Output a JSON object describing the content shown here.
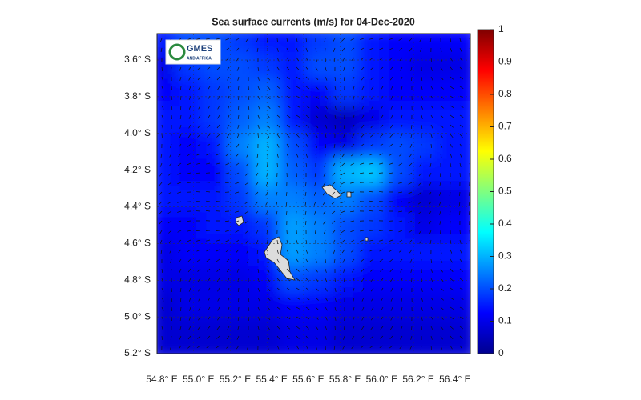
{
  "chart_data": {
    "type": "heatmap",
    "title": "Sea surface currents (m/s) for 04-Dec-2020",
    "logo_title": "GMES",
    "logo_subtitle": "AND AFRICA",
    "xlim": [
      54.8,
      56.51
    ],
    "ylim": [
      -5.2,
      -3.456
    ],
    "xticks": [
      {
        "value": 54.8,
        "label": "54.8° E"
      },
      {
        "value": 55.0,
        "label": "55.0° E"
      },
      {
        "value": 55.2,
        "label": "55.2° E"
      },
      {
        "value": 55.4,
        "label": "55.4° E"
      },
      {
        "value": 55.6,
        "label": "55.6° E"
      },
      {
        "value": 55.8,
        "label": "55.8° E"
      },
      {
        "value": 56.0,
        "label": "56.0° E"
      },
      {
        "value": 56.2,
        "label": "56.2° E"
      },
      {
        "value": 56.4,
        "label": "56.4° E"
      }
    ],
    "yticks": [
      {
        "value": -3.6,
        "label": "3.6° S"
      },
      {
        "value": -3.8,
        "label": "3.8° S"
      },
      {
        "value": -4.0,
        "label": "4.0° S"
      },
      {
        "value": -4.2,
        "label": "4.2° S"
      },
      {
        "value": -4.4,
        "label": "4.4° S"
      },
      {
        "value": -4.6,
        "label": "4.6° S"
      },
      {
        "value": -4.8,
        "label": "4.8° S"
      },
      {
        "value": -5.0,
        "label": "5.0° S"
      },
      {
        "value": -5.2,
        "label": "5.2° S"
      }
    ],
    "colorbar_lim": [
      0,
      1
    ],
    "colorbar_ticks": [
      0,
      0.1,
      0.2,
      0.3,
      0.4,
      0.5,
      0.6,
      0.7,
      0.8,
      0.9,
      1
    ],
    "colormap": "jet",
    "grid": true,
    "values": [
      [
        0.15,
        0.2,
        0.2,
        0.18,
        0.15,
        0.15,
        0.18,
        0.2,
        0.15,
        0.12,
        0.12,
        0.12
      ],
      [
        0.1,
        0.18,
        0.2,
        0.2,
        0.18,
        0.15,
        0.2,
        0.2,
        0.15,
        0.12,
        0.1,
        0.1
      ],
      [
        0.12,
        0.15,
        0.18,
        0.2,
        0.22,
        0.15,
        0.12,
        0.18,
        0.15,
        0.12,
        0.12,
        0.12
      ],
      [
        0.15,
        0.15,
        0.18,
        0.22,
        0.25,
        0.15,
        0.08,
        0.06,
        0.1,
        0.15,
        0.15,
        0.15
      ],
      [
        0.15,
        0.12,
        0.15,
        0.25,
        0.3,
        0.2,
        0.12,
        0.1,
        0.18,
        0.2,
        0.18,
        0.15
      ],
      [
        0.15,
        0.12,
        0.12,
        0.2,
        0.3,
        0.22,
        0.18,
        0.3,
        0.32,
        0.2,
        0.15,
        0.15
      ],
      [
        0.15,
        0.15,
        0.15,
        0.18,
        0.25,
        0.25,
        0.22,
        0.25,
        0.2,
        0.12,
        0.08,
        0.1
      ],
      [
        0.12,
        0.12,
        0.15,
        0.15,
        0.18,
        0.28,
        0.25,
        0.2,
        0.18,
        0.15,
        0.1,
        0.12
      ],
      [
        0.1,
        0.12,
        0.12,
        0.12,
        0.15,
        0.28,
        0.25,
        0.2,
        0.15,
        0.15,
        0.15,
        0.15
      ],
      [
        0.1,
        0.1,
        0.1,
        0.1,
        0.12,
        0.2,
        0.18,
        0.15,
        0.12,
        0.12,
        0.12,
        0.12
      ],
      [
        0.08,
        0.1,
        0.1,
        0.1,
        0.1,
        0.12,
        0.12,
        0.1,
        0.1,
        0.1,
        0.1,
        0.1
      ],
      [
        0.08,
        0.08,
        0.08,
        0.08,
        0.08,
        0.1,
        0.1,
        0.08,
        0.08,
        0.08,
        0.08,
        0.08
      ]
    ]
  }
}
